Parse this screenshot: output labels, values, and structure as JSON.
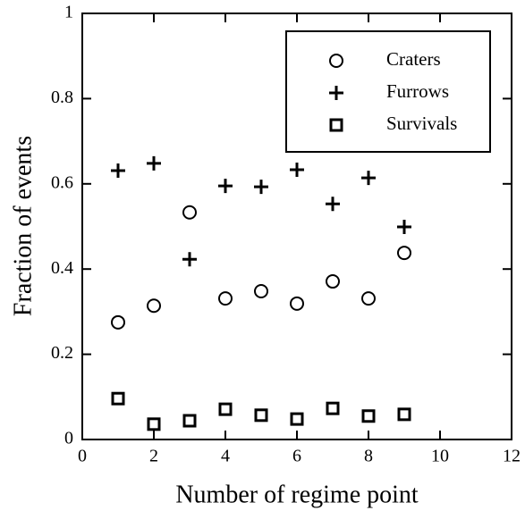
{
  "chart_data": {
    "type": "scatter",
    "xlabel": "Number of regime point",
    "ylabel": "Fraction of events",
    "xlim": [
      0,
      12
    ],
    "xticks": [
      0,
      2,
      4,
      6,
      8,
      10,
      12
    ],
    "ylim": [
      0,
      1
    ],
    "yticks": [
      0,
      0.2,
      0.4,
      0.6,
      0.8,
      1
    ],
    "legend": "upper right",
    "series": [
      {
        "name": "Craters",
        "color": "#000000",
        "marker": "circle",
        "x": [
          1,
          2,
          3,
          4,
          5,
          6,
          7,
          8,
          9
        ],
        "values": [
          0.275,
          0.314,
          0.533,
          0.331,
          0.348,
          0.319,
          0.371,
          0.331,
          0.438
        ]
      },
      {
        "name": "Furrows",
        "color": "#000000",
        "marker": "plus",
        "x": [
          1,
          2,
          3,
          4,
          5,
          6,
          7,
          8,
          9
        ],
        "values": [
          0.631,
          0.648,
          0.423,
          0.595,
          0.593,
          0.633,
          0.553,
          0.614,
          0.499
        ]
      },
      {
        "name": "Survivals",
        "color": "#000000",
        "marker": "square",
        "x": [
          1,
          2,
          3,
          4,
          5,
          6,
          7,
          8,
          9
        ],
        "values": [
          0.096,
          0.036,
          0.044,
          0.071,
          0.057,
          0.048,
          0.073,
          0.055,
          0.059
        ]
      }
    ]
  }
}
